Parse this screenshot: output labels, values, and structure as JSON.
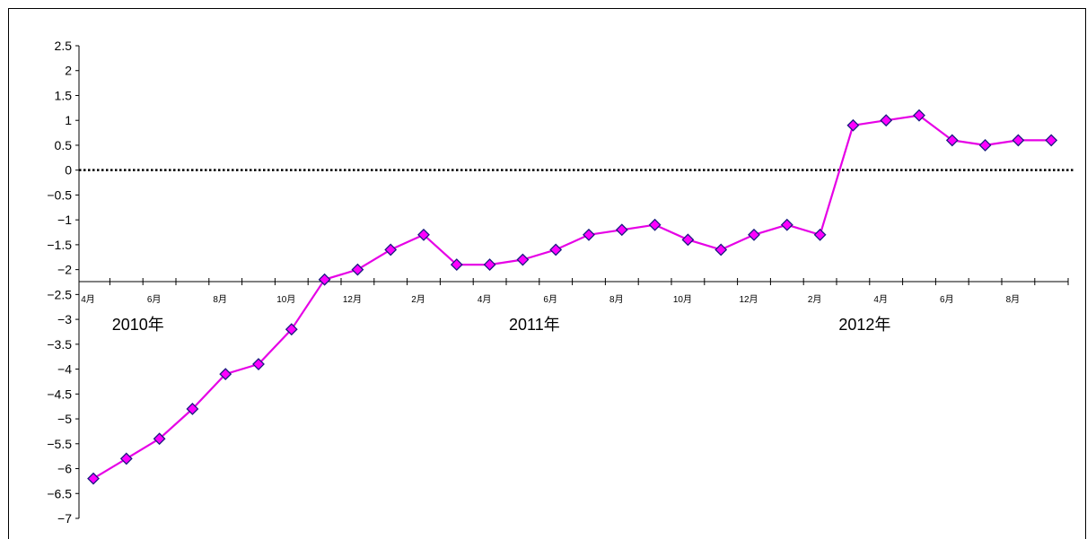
{
  "colors": {
    "line": "#e600e6",
    "marker_fill": "#ff00ff",
    "marker_stroke": "#1a1a80",
    "axis": "#000000",
    "zero_line": "#000000"
  },
  "chart_data": {
    "type": "line",
    "title": "",
    "xlabel": "",
    "ylabel": "",
    "ylim": [
      -7,
      2.5
    ],
    "ytick_step": 0.5,
    "yticks": [
      "2.5",
      "2",
      "1.5",
      "1",
      "0.5",
      "0",
      "-0.5",
      "-1",
      "-1.5",
      "-2",
      "-2.5",
      "-3",
      "-3.5",
      "-4",
      "-4.5",
      "-5",
      "-5.5",
      "-6",
      "-6.5",
      "-7"
    ],
    "grid": false,
    "zero_line": "dotted",
    "x": [
      "2010-04",
      "2010-05",
      "2010-06",
      "2010-07",
      "2010-08",
      "2010-09",
      "2010-10",
      "2010-11",
      "2010-12",
      "2011-01",
      "2011-02",
      "2011-03",
      "2011-04",
      "2011-05",
      "2011-06",
      "2011-07",
      "2011-08",
      "2011-09",
      "2011-10",
      "2011-11",
      "2011-12",
      "2012-01",
      "2012-02",
      "2012-03",
      "2012-04",
      "2012-05",
      "2012-06",
      "2012-07",
      "2012-08",
      "2012-09"
    ],
    "x_tick_labels": [
      "4月",
      "",
      "6月",
      "",
      "8月",
      "",
      "10月",
      "",
      "12月",
      "",
      "2月",
      "",
      "4月",
      "",
      "6月",
      "",
      "8月",
      "",
      "10月",
      "",
      "12月",
      "",
      "2月",
      "",
      "4月",
      "",
      "6月",
      "",
      "8月",
      ""
    ],
    "year_labels": [
      {
        "text": "2010年",
        "x": "2010-05"
      },
      {
        "text": "2011年",
        "x": "2011-05"
      },
      {
        "text": "2012年",
        "x": "2012-03"
      }
    ],
    "series": [
      {
        "values": [
          -6.2,
          -5.8,
          -5.4,
          -4.8,
          -4.1,
          -3.9,
          -3.2,
          -2.2,
          -2.0,
          -1.6,
          -1.3,
          -1.9,
          -1.9,
          -1.8,
          -1.6,
          -1.3,
          -1.2,
          -1.1,
          -1.4,
          -1.6,
          -1.3,
          -1.1,
          -1.3,
          0.9,
          1.0,
          1.1,
          0.6,
          0.5,
          0.6,
          0.6
        ]
      }
    ]
  }
}
